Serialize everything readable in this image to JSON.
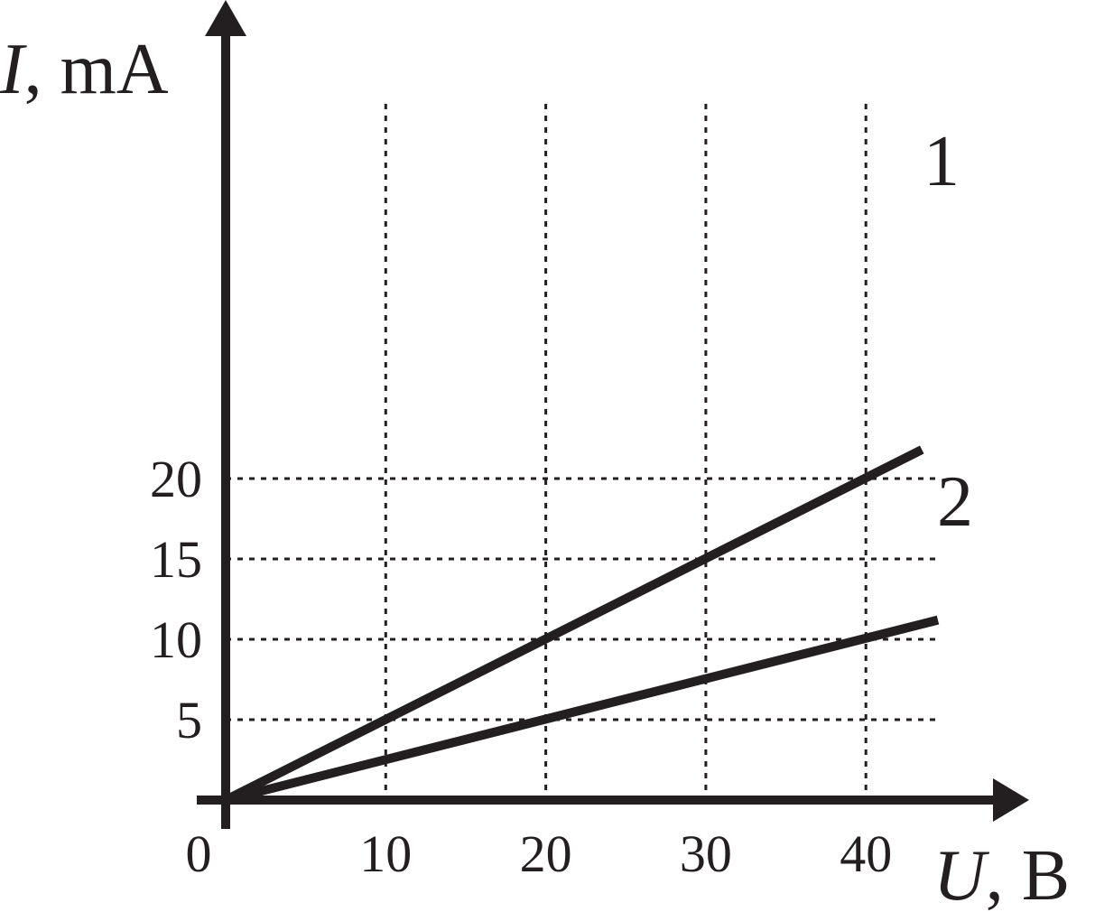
{
  "chart_data": {
    "type": "line",
    "x_var": "U",
    "x_unit": ", В",
    "y_var": "I",
    "y_unit": ", mA",
    "origin_label": "0",
    "xlim": [
      0,
      40
    ],
    "ylim": [
      0,
      20
    ],
    "x_ticks": [
      10,
      20,
      30,
      40
    ],
    "y_ticks": [
      5,
      10,
      15,
      20
    ],
    "x_tick_labels": [
      "10",
      "20",
      "30",
      "40"
    ],
    "y_tick_labels": [
      "5",
      "10",
      "15",
      "20"
    ],
    "grid": true,
    "grid_style": "dotted",
    "line_color": "#231f20",
    "series": [
      {
        "label": "1",
        "points": [
          [
            0,
            0
          ],
          [
            43.5,
            21.8
          ]
        ]
      },
      {
        "label": "2",
        "points": [
          [
            0,
            0
          ],
          [
            44.5,
            11.2
          ]
        ]
      }
    ]
  }
}
